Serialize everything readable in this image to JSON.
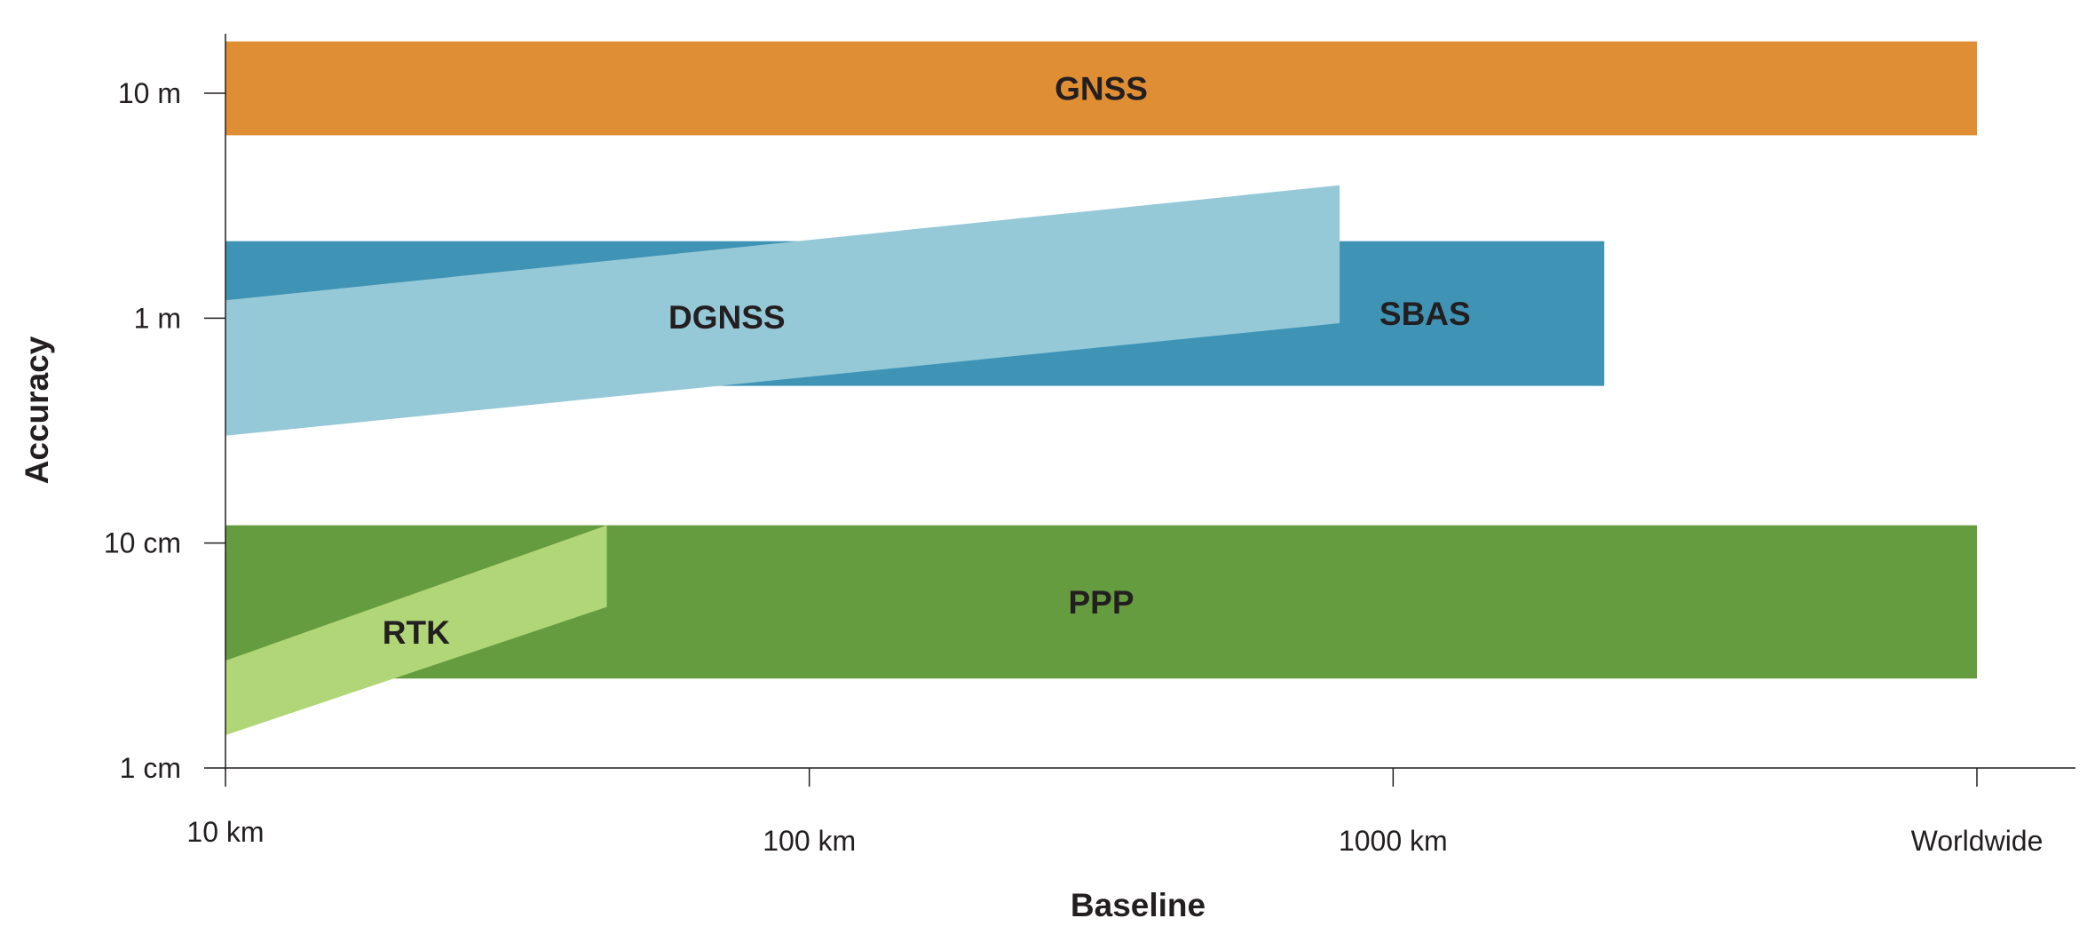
{
  "chart_data": {
    "type": "area",
    "title": "",
    "xlabel": "Baseline",
    "ylabel": "Accuracy",
    "x_scale": "log",
    "y_scale": "log",
    "x_ticks": [
      {
        "value": 10,
        "label": "10 km"
      },
      {
        "value": 100,
        "label": "100 km"
      },
      {
        "value": 1000,
        "label": "1000 km"
      },
      {
        "value": 10000,
        "label": "Worldwide"
      }
    ],
    "y_ticks": [
      {
        "value": 0.01,
        "label": "1 cm"
      },
      {
        "value": 0.1,
        "label": "10 cm"
      },
      {
        "value": 1,
        "label": "1 m"
      },
      {
        "value": 10,
        "label": "10 m"
      }
    ],
    "xlim": [
      10,
      10000
    ],
    "ylim": [
      0.01,
      10
    ],
    "grid": false,
    "legend": "none",
    "series": [
      {
        "name": "GNSS",
        "color": "#e08e33",
        "x": [
          10,
          10000
        ],
        "y_upper": [
          17,
          17
        ],
        "y_lower": [
          6.5,
          6.5
        ]
      },
      {
        "name": "SBAS",
        "color": "#3f94b6",
        "x": [
          10,
          2300
        ],
        "y_upper": [
          2.2,
          2.2
        ],
        "y_lower": [
          0.5,
          0.5
        ]
      },
      {
        "name": "DGNSS",
        "color": "#96c9d8",
        "x": [
          10,
          810
        ],
        "y_upper": [
          1.2,
          3.9
        ],
        "y_lower": [
          0.3,
          0.95
        ]
      },
      {
        "name": "PPP",
        "color": "#659c3f",
        "x": [
          10,
          10000
        ],
        "y_upper": [
          0.12,
          0.12
        ],
        "y_lower": [
          0.025,
          0.025
        ]
      },
      {
        "name": "RTK",
        "color": "#b1d677",
        "x": [
          10,
          45
        ],
        "y_upper": [
          0.03,
          0.12
        ],
        "y_lower": [
          0.014,
          0.052
        ]
      }
    ]
  }
}
